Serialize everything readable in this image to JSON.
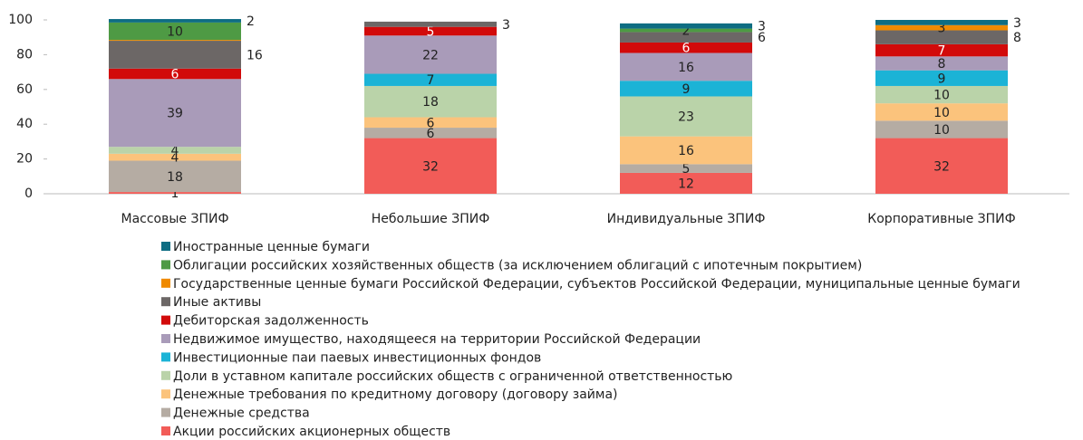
{
  "chart_data": {
    "type": "stacked_bar",
    "categories": [
      "Массовые ЗПИФ",
      "Небольшие ЗПИФ",
      "Индивидуальные ЗПИФ",
      "Корпоративные ЗПИФ"
    ],
    "ylim": [
      0,
      100
    ],
    "yticks": [
      0,
      20,
      40,
      60,
      80,
      100
    ],
    "series": [
      {
        "name": "Акции российских акционерных обществ",
        "color": "#f25c58",
        "values": [
          1,
          32,
          12,
          32
        ]
      },
      {
        "name": "Денежные средства",
        "color": "#b5aca3",
        "values": [
          18,
          6,
          5,
          10
        ]
      },
      {
        "name": "Денежные требования по кредитному договору (договору займа)",
        "color": "#fbc37c",
        "values": [
          4,
          6,
          16,
          10
        ]
      },
      {
        "name": "Доли в уставном капитале российских обществ с ограниченной ответственностью",
        "color": "#bad3a9",
        "values": [
          4,
          18,
          23,
          10
        ]
      },
      {
        "name": "Инвестиционные паи паевых инвестиционных фондов",
        "color": "#1bb3d6",
        "values": [
          0,
          7,
          9,
          9
        ]
      },
      {
        "name": "Недвижимое имущество, находящееся на территории Российской Федерации",
        "color": "#a99bb9",
        "values": [
          39,
          22,
          16,
          8
        ]
      },
      {
        "name": "Дебиторская задолженность",
        "color": "#d20a0a",
        "values": [
          6,
          5,
          6,
          7
        ]
      },
      {
        "name": "Иные активы",
        "color": "#6c6766",
        "values": [
          16,
          3,
          6,
          8
        ]
      },
      {
        "name": "Государственные ценные бумаги Российской Федерации, субъектов Российской Федерации, муниципальные ценные бумаги",
        "color": "#ef8a00",
        "values": [
          0.5,
          0,
          0,
          3
        ]
      },
      {
        "name": "Облигации российских хозяйственных обществ (за исключением облигаций с ипотечным покрытием)",
        "color": "#4e9a44",
        "values": [
          10,
          0,
          2,
          0
        ]
      },
      {
        "name": "Иностранные ценные бумаги",
        "color": "#0e6d83",
        "values": [
          2,
          0,
          3,
          3
        ]
      }
    ]
  }
}
